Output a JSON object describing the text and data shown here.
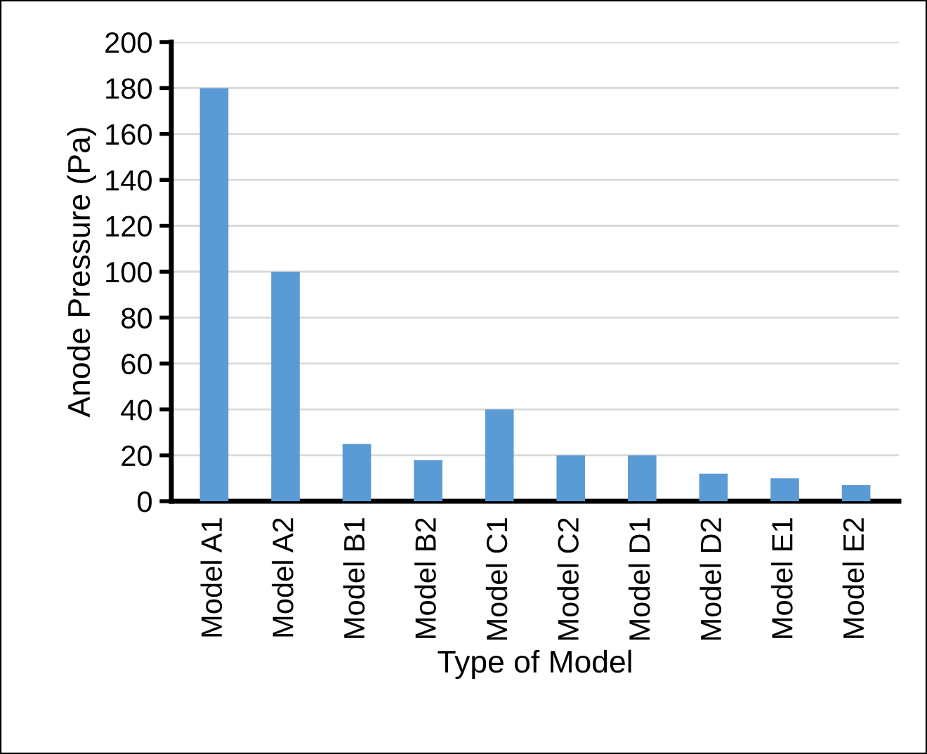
{
  "chart_data": {
    "type": "bar",
    "xlabel": "Type of Model",
    "ylabel": "Anode Pressure (Pa)",
    "categories": [
      "Model A1",
      "Model A2",
      "Model B1",
      "Model B2",
      "Model C1",
      "Model C2",
      "Model D1",
      "Model D2",
      "Model E1",
      "Model E2"
    ],
    "values": [
      180,
      100,
      25,
      18,
      40,
      20,
      20,
      12,
      10,
      7
    ],
    "color": "#5b9bd5",
    "ylim": [
      0,
      200
    ],
    "yticks": [
      0,
      20,
      40,
      60,
      80,
      100,
      120,
      140,
      160,
      180,
      200
    ],
    "grid": "y"
  }
}
